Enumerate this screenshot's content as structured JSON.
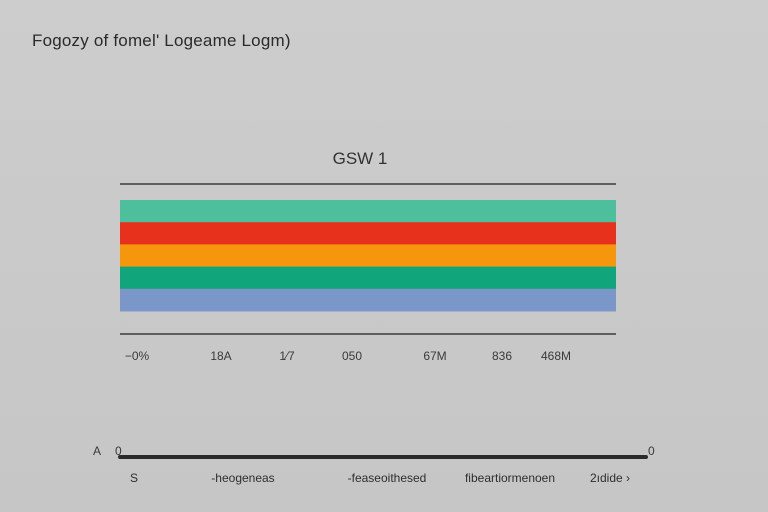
{
  "header": {
    "title": "Fogozy of fomel' Logeame Logm)"
  },
  "chart_data": {
    "type": "bar",
    "title": "GSW  1",
    "stack_bands": [
      {
        "color": "#4dbf9c",
        "value": 1
      },
      {
        "color": "#e7311c",
        "value": 1
      },
      {
        "color": "#f6960c",
        "value": 1
      },
      {
        "color": "#10a57a",
        "value": 1
      },
      {
        "color": "#7b96c8",
        "value": 1
      }
    ],
    "tick_labels": [
      "−0%",
      "18A",
      "1⁄7",
      "050",
      "67M",
      "836",
      "468M"
    ],
    "bottom_axis": {
      "left_label": "A",
      "start_label": "0",
      "end_label": "0",
      "categories": [
        "S",
        "-heogeneas",
        "-feaseoithesed",
        "fibeartiormenoen",
        "2ıdide ›"
      ]
    },
    "colors": {
      "axis": "#2b2b2b",
      "rule": "#3b3b3b"
    }
  }
}
